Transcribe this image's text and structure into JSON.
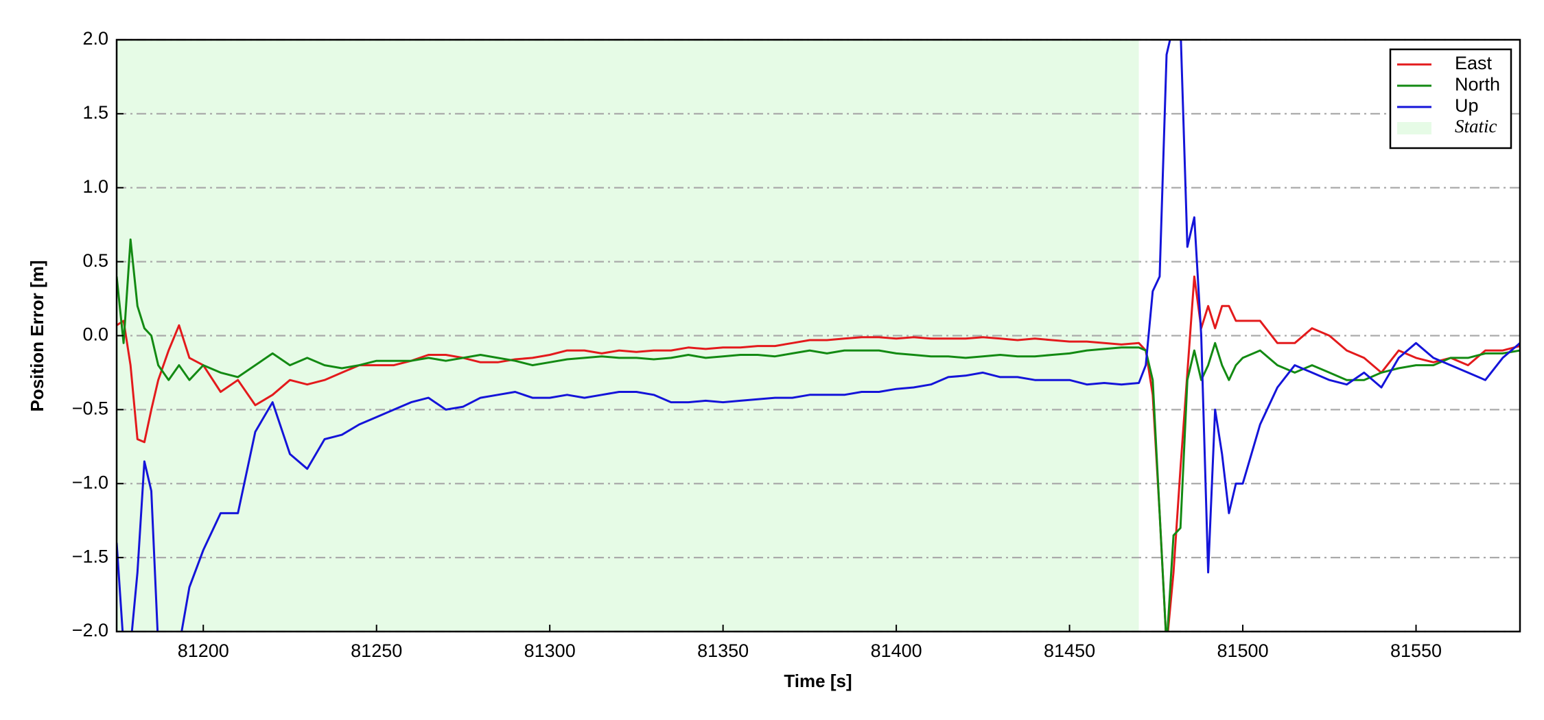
{
  "chart_data": {
    "type": "line",
    "xlabel": "Time [s]",
    "ylabel": "Position Error [m]",
    "xlim": [
      81175,
      81580
    ],
    "ylim": [
      -2.0,
      2.0
    ],
    "xticks": [
      81200,
      81250,
      81300,
      81350,
      81400,
      81450,
      81500,
      81550
    ],
    "yticks": [
      {
        "value": -2.0,
        "label": "−2.0"
      },
      {
        "value": -1.5,
        "label": "−1.5"
      },
      {
        "value": -1.0,
        "label": "−1.0"
      },
      {
        "value": -0.5,
        "label": "−0.5"
      },
      {
        "value": 0.0,
        "label": "0.0"
      },
      {
        "value": 0.5,
        "label": "0.5"
      },
      {
        "value": 1.0,
        "label": "1.0"
      },
      {
        "value": 1.5,
        "label": "1.5"
      },
      {
        "value": 2.0,
        "label": "2.0"
      }
    ],
    "grid": true,
    "legend": "upper right",
    "shaded_region": {
      "x": [
        81175,
        81470
      ],
      "label": "Static",
      "color": "#e6fbe6"
    },
    "x": [
      81175,
      81177,
      81179,
      81181,
      81183,
      81185,
      81187,
      81190,
      81193,
      81196,
      81200,
      81205,
      81210,
      81215,
      81220,
      81225,
      81230,
      81235,
      81240,
      81245,
      81250,
      81255,
      81260,
      81265,
      81270,
      81275,
      81280,
      81285,
      81290,
      81295,
      81300,
      81305,
      81310,
      81315,
      81320,
      81325,
      81330,
      81335,
      81340,
      81345,
      81350,
      81355,
      81360,
      81365,
      81370,
      81375,
      81380,
      81385,
      81390,
      81395,
      81400,
      81405,
      81410,
      81415,
      81420,
      81425,
      81430,
      81435,
      81440,
      81445,
      81450,
      81455,
      81460,
      81465,
      81470,
      81472,
      81474,
      81476,
      81478,
      81480,
      81482,
      81484,
      81486,
      81488,
      81490,
      81492,
      81494,
      81496,
      81498,
      81500,
      81505,
      81510,
      81515,
      81520,
      81525,
      81530,
      81535,
      81540,
      81545,
      81550,
      81555,
      81560,
      81565,
      81570,
      81575,
      81580
    ],
    "series": [
      {
        "name": "East",
        "color": "#e31a1c",
        "values": [
          0.07,
          0.1,
          -0.2,
          -0.7,
          -0.72,
          -0.5,
          -0.3,
          -0.1,
          0.07,
          -0.15,
          -0.2,
          -0.38,
          -0.3,
          -0.47,
          -0.4,
          -0.3,
          -0.33,
          -0.3,
          -0.25,
          -0.2,
          -0.2,
          -0.2,
          -0.17,
          -0.13,
          -0.13,
          -0.15,
          -0.18,
          -0.18,
          -0.16,
          -0.15,
          -0.13,
          -0.1,
          -0.1,
          -0.12,
          -0.1,
          -0.11,
          -0.1,
          -0.1,
          -0.08,
          -0.09,
          -0.08,
          -0.08,
          -0.07,
          -0.07,
          -0.05,
          -0.03,
          -0.03,
          -0.02,
          -0.01,
          -0.01,
          -0.02,
          -0.01,
          -0.02,
          -0.02,
          -0.02,
          -0.01,
          -0.02,
          -0.03,
          -0.02,
          -0.03,
          -0.04,
          -0.04,
          -0.05,
          -0.06,
          -0.05,
          -0.1,
          -0.4,
          -1.2,
          -2.1,
          -1.6,
          -0.9,
          -0.25,
          0.4,
          0.05,
          0.2,
          0.05,
          0.2,
          0.2,
          0.1,
          0.1,
          0.1,
          -0.05,
          -0.05,
          0.05,
          0.0,
          -0.1,
          -0.15,
          -0.25,
          -0.1,
          -0.15,
          -0.18,
          -0.15,
          -0.2,
          -0.1,
          -0.1,
          -0.07
        ]
      },
      {
        "name": "North",
        "color": "#138a13",
        "values": [
          0.4,
          -0.05,
          0.65,
          0.2,
          0.05,
          0.0,
          -0.2,
          -0.3,
          -0.2,
          -0.3,
          -0.2,
          -0.25,
          -0.28,
          -0.2,
          -0.12,
          -0.2,
          -0.15,
          -0.2,
          -0.22,
          -0.2,
          -0.17,
          -0.17,
          -0.17,
          -0.15,
          -0.17,
          -0.15,
          -0.13,
          -0.15,
          -0.17,
          -0.2,
          -0.18,
          -0.16,
          -0.15,
          -0.14,
          -0.15,
          -0.15,
          -0.16,
          -0.15,
          -0.13,
          -0.15,
          -0.14,
          -0.13,
          -0.13,
          -0.14,
          -0.12,
          -0.1,
          -0.12,
          -0.1,
          -0.1,
          -0.1,
          -0.12,
          -0.13,
          -0.14,
          -0.14,
          -0.15,
          -0.14,
          -0.13,
          -0.14,
          -0.14,
          -0.13,
          -0.12,
          -0.1,
          -0.09,
          -0.08,
          -0.08,
          -0.1,
          -0.3,
          -1.2,
          -2.1,
          -1.35,
          -1.3,
          -0.3,
          -0.1,
          -0.3,
          -0.2,
          -0.05,
          -0.2,
          -0.3,
          -0.2,
          -0.15,
          -0.1,
          -0.2,
          -0.25,
          -0.2,
          -0.25,
          -0.3,
          -0.3,
          -0.25,
          -0.22,
          -0.2,
          -0.2,
          -0.15,
          -0.15,
          -0.12,
          -0.12,
          -0.1
        ]
      },
      {
        "name": "Up",
        "color": "#1414d9",
        "values": [
          -1.4,
          -2.1,
          -2.1,
          -1.6,
          -0.85,
          -1.05,
          -2.1,
          -2.1,
          -2.1,
          -1.7,
          -1.45,
          -1.2,
          -1.2,
          -0.65,
          -0.45,
          -0.8,
          -0.9,
          -0.7,
          -0.67,
          -0.6,
          -0.55,
          -0.5,
          -0.45,
          -0.42,
          -0.5,
          -0.48,
          -0.42,
          -0.4,
          -0.38,
          -0.42,
          -0.42,
          -0.4,
          -0.42,
          -0.4,
          -0.38,
          -0.38,
          -0.4,
          -0.45,
          -0.45,
          -0.44,
          -0.45,
          -0.44,
          -0.43,
          -0.42,
          -0.42,
          -0.4,
          -0.4,
          -0.4,
          -0.38,
          -0.38,
          -0.36,
          -0.35,
          -0.33,
          -0.28,
          -0.27,
          -0.25,
          -0.28,
          -0.28,
          -0.3,
          -0.3,
          -0.3,
          -0.33,
          -0.32,
          -0.33,
          -0.32,
          -0.2,
          0.3,
          0.4,
          1.9,
          2.1,
          2.1,
          0.6,
          0.8,
          0.0,
          -1.6,
          -0.5,
          -0.8,
          -1.2,
          -1.0,
          -1.0,
          -0.6,
          -0.35,
          -0.2,
          -0.25,
          -0.3,
          -0.33,
          -0.25,
          -0.35,
          -0.15,
          -0.05,
          -0.15,
          -0.2,
          -0.25,
          -0.3,
          -0.15,
          -0.05
        ]
      }
    ]
  }
}
